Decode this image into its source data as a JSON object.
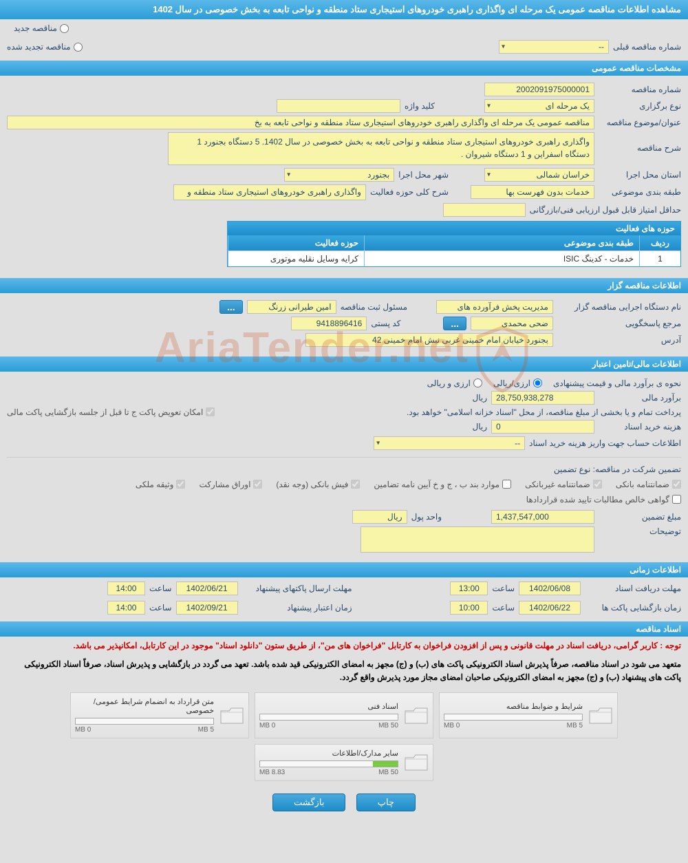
{
  "page_title": "مشاهده اطلاعات مناقصه عمومی یک مرحله ای واگذاری راهبری خودروهای استیجاری ستاد منطقه و نواحی تابعه به بخش خصوصی در سال 1402",
  "status": {
    "new_label": "مناقصه جدید",
    "renewed_label": "مناقصه تجدید شده",
    "prev_number_label": "شماره مناقصه قبلی",
    "prev_number_value": "--"
  },
  "sec_general": {
    "header": "مشخصات مناقصه عمومی",
    "tender_no_label": "شماره مناقصه",
    "tender_no_value": "2002091975000001",
    "hold_type_label": "نوع برگزاری",
    "hold_type_value": "یک مرحله ای",
    "keyword_label": "کلید واژه",
    "keyword_value": "",
    "subject_label": "عنوان/موضوع مناقصه",
    "subject_value": "مناقصه عمومی یک مرحله ای واگذاری راهبری خودروهای استیجاری ستاد منطقه و نواحی تابعه به بخ",
    "desc_label": "شرح مناقصه",
    "desc_value": "واگذاری راهبری خودروهای استیجاری ستاد منطقه و نواحی تابعه به بخش خصوصی در سال 1402.\n5 دستگاه بجنورد 1 دستگاه اسفراین و 1 دستگاه شیروان .",
    "province_label": "استان محل اجرا",
    "province_value": "خراسان شمالی",
    "city_label": "شهر محل اجرا",
    "city_value": "بجنورد",
    "category_label": "طبقه بندی موضوعی",
    "category_value": "خدمات بدون فهرست بها",
    "scope_label": "شرح کلی حوزه فعالیت",
    "scope_value": "واگذاری راهبری خودروهای استیجاری ستاد منطقه و",
    "min_score_label": "حداقل امتیاز قابل قبول ارزیابی فنی/بازرگانی",
    "min_score_value": ""
  },
  "activity_table": {
    "title": "حوزه های فعالیت",
    "col_idx": "ردیف",
    "col_cat": "طبقه بندی موضوعی",
    "col_act": "حوزه فعالیت",
    "row1_idx": "1",
    "row1_cat": "خدمات - کدینگ ISIC",
    "row1_act": "کرایه وسایل نقلیه موتوری"
  },
  "sec_issuer": {
    "header": "اطلاعات مناقصه گزار",
    "org_label": "نام دستگاه اجرایی مناقصه گزار",
    "org_value": "مدیریت پخش فرآورده های",
    "reg_officer_label": "مسئول ثبت مناقصه",
    "reg_officer_value": "امین طیرانی زرنگ",
    "responder_label": "مرجع پاسخگویی",
    "responder_value": "ضحی محمدی",
    "postal_label": "کد پستی",
    "postal_value": "9418896416",
    "address_label": "آدرس",
    "address_value": "بجنورد خیابان امام خمینی غربی نبش امام خمینی 42"
  },
  "sec_finance": {
    "header": "اطلاعات مالی/تامین اعتبار",
    "est_method_label": "نحوه ی برآورد مالی و قیمت پیشنهادی",
    "opt_rial": "ارزی/ریالی",
    "opt_both": "ارزی و ریالی",
    "estimate_label": "برآورد مالی",
    "estimate_value": "28,750,938,278",
    "currency": "ریال",
    "payment_note": "پرداخت تمام و یا بخشی از مبلغ مناقصه، از محل \"اسناد خزانه اسلامی\" خواهد بود.",
    "replace_chk": "امکان تعویض پاکت ج تا قبل از جلسه بازگشایی پاکت مالی",
    "doc_cost_label": "هزینه خرید اسناد",
    "doc_cost_value": "0",
    "account_label": "اطلاعات حساب جهت واریز هزینه خرید اسناد",
    "account_value": "--"
  },
  "guarantee": {
    "label": "تضمین شرکت در مناقصه:    نوع تضمین",
    "c1": "ضمانتنامه بانکی",
    "c2": "ضمانتنامه غیربانکی",
    "c3": "موارد بند ب ، ج و خ آیین نامه تضامین",
    "c4": "فیش بانکی (وجه نقد)",
    "c5": "اوراق مشارکت",
    "c6": "وثیقه ملکی",
    "c7": "گواهی خالص مطالبات تایید شده قراردادها",
    "amount_label": "مبلغ تضمین",
    "amount_value": "1,437,547,000",
    "unit_label": "واحد پول",
    "unit_value": "ریال",
    "notes_label": "توضیحات",
    "notes_value": ""
  },
  "sec_time": {
    "header": "اطلاعات زمانی",
    "deadline_docs": "مهلت دریافت اسناد",
    "deadline_proposal": "مهلت ارسال پاکتهای پیشنهاد",
    "open_envelopes": "زمان بازگشایی پاکت ها",
    "validity": "زمان اعتبار پیشنهاد",
    "hour_label": "ساعت",
    "d1_date": "1402/06/08",
    "d1_time": "13:00",
    "d2_date": "1402/06/21",
    "d2_time": "14:00",
    "d3_date": "1402/06/22",
    "d3_time": "10:00",
    "d4_date": "1402/09/21",
    "d4_time": "14:00"
  },
  "sec_docs": {
    "header": "اسناد مناقصه",
    "warn1": "توجه : کاربر گرامی، دریافت اسناد در مهلت قانونی و پس از افزودن فراخوان به کارتابل \"فراخوان های من\"، از طریق ستون \"دانلود اسناد\" موجود در این کارتابل، امکانپذیر می باشد.",
    "warn2": "متعهد می شود در اسناد مناقصه، صرفاً پذیرش اسناد الکترونیکی پاکت های (ب) و (ج) مجهز به امضای الکترونیکی قید شده باشد. تعهد می گردد در بازگشایی و پذیرش اسناد، صرفاً اسناد الکترونیکی پاکت های پیشنهاد (ب) و (ج) مجهز به امضای الکترونیکی صاحبان امضای مجاز مورد پذیرش واقع گردد.",
    "f1_title": "شرایط و ضوابط مناقصه",
    "f1_used": "0 MB",
    "f1_cap": "5 MB",
    "f1_pct": 0,
    "f2_title": "اسناد فنی",
    "f2_used": "0 MB",
    "f2_cap": "50 MB",
    "f2_pct": 0,
    "f3_title": "متن قرارداد به انضمام شرایط عمومی/خصوصی",
    "f3_used": "0 MB",
    "f3_cap": "5 MB",
    "f3_pct": 0,
    "f4_title": "سایر مدارک/اطلاعات",
    "f4_used": "8.83 MB",
    "f4_cap": "50 MB",
    "f4_pct": 18
  },
  "buttons": {
    "print": "چاپ",
    "back": "بازگشت"
  },
  "watermark": "AriaTender.net",
  "colors": {
    "header_grad_top": "#5bb8e8",
    "header_grad_bot": "#2a9dd8",
    "field_bg": "#f8f5a8",
    "label": "#2b4a6b",
    "warning": "#c00",
    "bar_fill": "#7ac943"
  }
}
